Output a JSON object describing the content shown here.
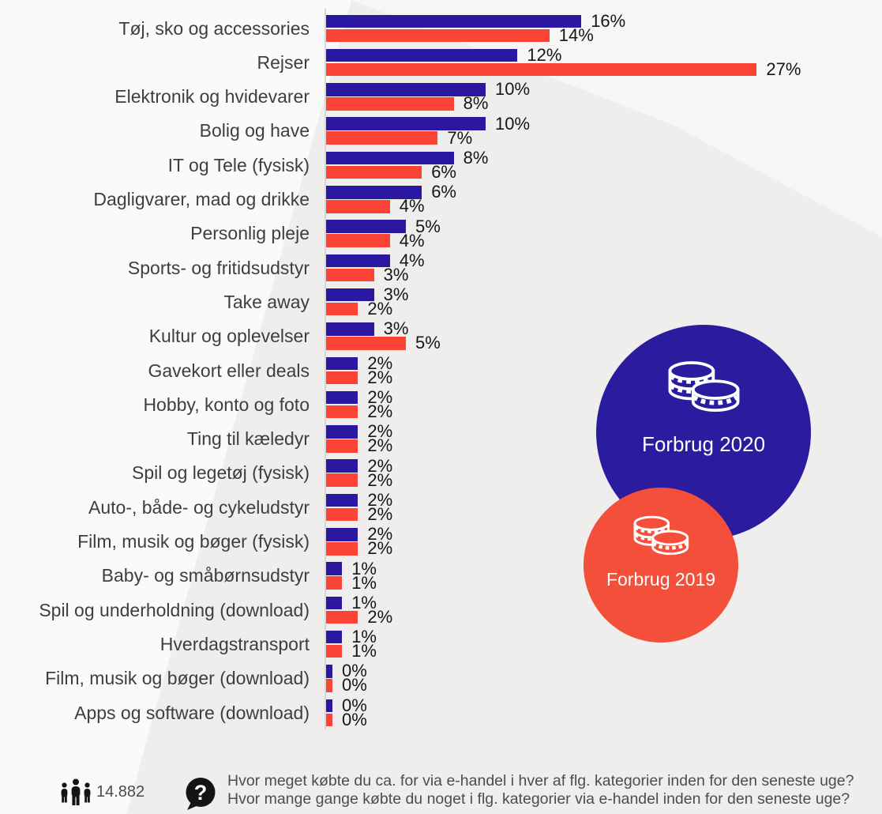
{
  "chart_data": {
    "type": "bar",
    "orientation": "horizontal",
    "unit": "%",
    "value_label_format": "{v}%",
    "axis_range": [
      0,
      27
    ],
    "grid": false,
    "legend_position": "right-middle",
    "categories": [
      "Tøj, sko og accessories",
      "Rejser",
      "Elektronik og hvidevarer",
      "Bolig og have",
      "IT og Tele (fysisk)",
      "Dagligvarer, mad og drikke",
      "Personlig pleje",
      "Sports- og fritidsudstyr",
      "Take away",
      "Kultur og oplevelser",
      "Gavekort eller deals",
      "Hobby, konto og foto",
      "Ting til kæledyr",
      "Spil og legetøj (fysisk)",
      "Auto-, både- og cykeludstyr",
      "Film, musik og bøger (fysisk)",
      "Baby- og småbørnsudstyr",
      "Spil og underholdning (download)",
      "Hverdagstransport",
      "Film, musik og bøger (download)",
      "Apps og software (download)"
    ],
    "series": [
      {
        "name": "Forbrug 2020",
        "color": "#2b18a0",
        "values": [
          16,
          12,
          10,
          10,
          8,
          6,
          5,
          4,
          3,
          3,
          2,
          2,
          2,
          2,
          2,
          2,
          1,
          1,
          1,
          0,
          0
        ]
      },
      {
        "name": "Forbrug 2019",
        "color": "#fb4336",
        "values": [
          14,
          27,
          8,
          7,
          6,
          4,
          4,
          3,
          2,
          5,
          2,
          2,
          2,
          2,
          2,
          2,
          1,
          2,
          1,
          0,
          0
        ]
      }
    ]
  },
  "legend": {
    "items": [
      {
        "label": "Forbrug 2020",
        "color": "#2b1b9e",
        "icon": "coins-icon"
      },
      {
        "label": "Forbrug 2019",
        "color": "#f44f3b",
        "icon": "coins-icon"
      }
    ]
  },
  "footer": {
    "respondents": "14.882",
    "respondents_icon": "people-icon",
    "question_icon": "question-bubble-icon",
    "question_line1": "Hvor meget købte du ca. for via e-handel i hver af flg. kategorier inden for den seneste uge?",
    "question_line2": "Hvor mange gange købte du noget i flg. kategorier via e-handel inden for den seneste uge?"
  },
  "colors": {
    "background": "#efeeed",
    "facet_light": "#fbfafa",
    "facet_top": "#f7f6f5",
    "axis": "#d7d6d5",
    "category_text": "#3e3e3d",
    "value_text": "#161616",
    "footer_text": "#4d4d4c"
  }
}
